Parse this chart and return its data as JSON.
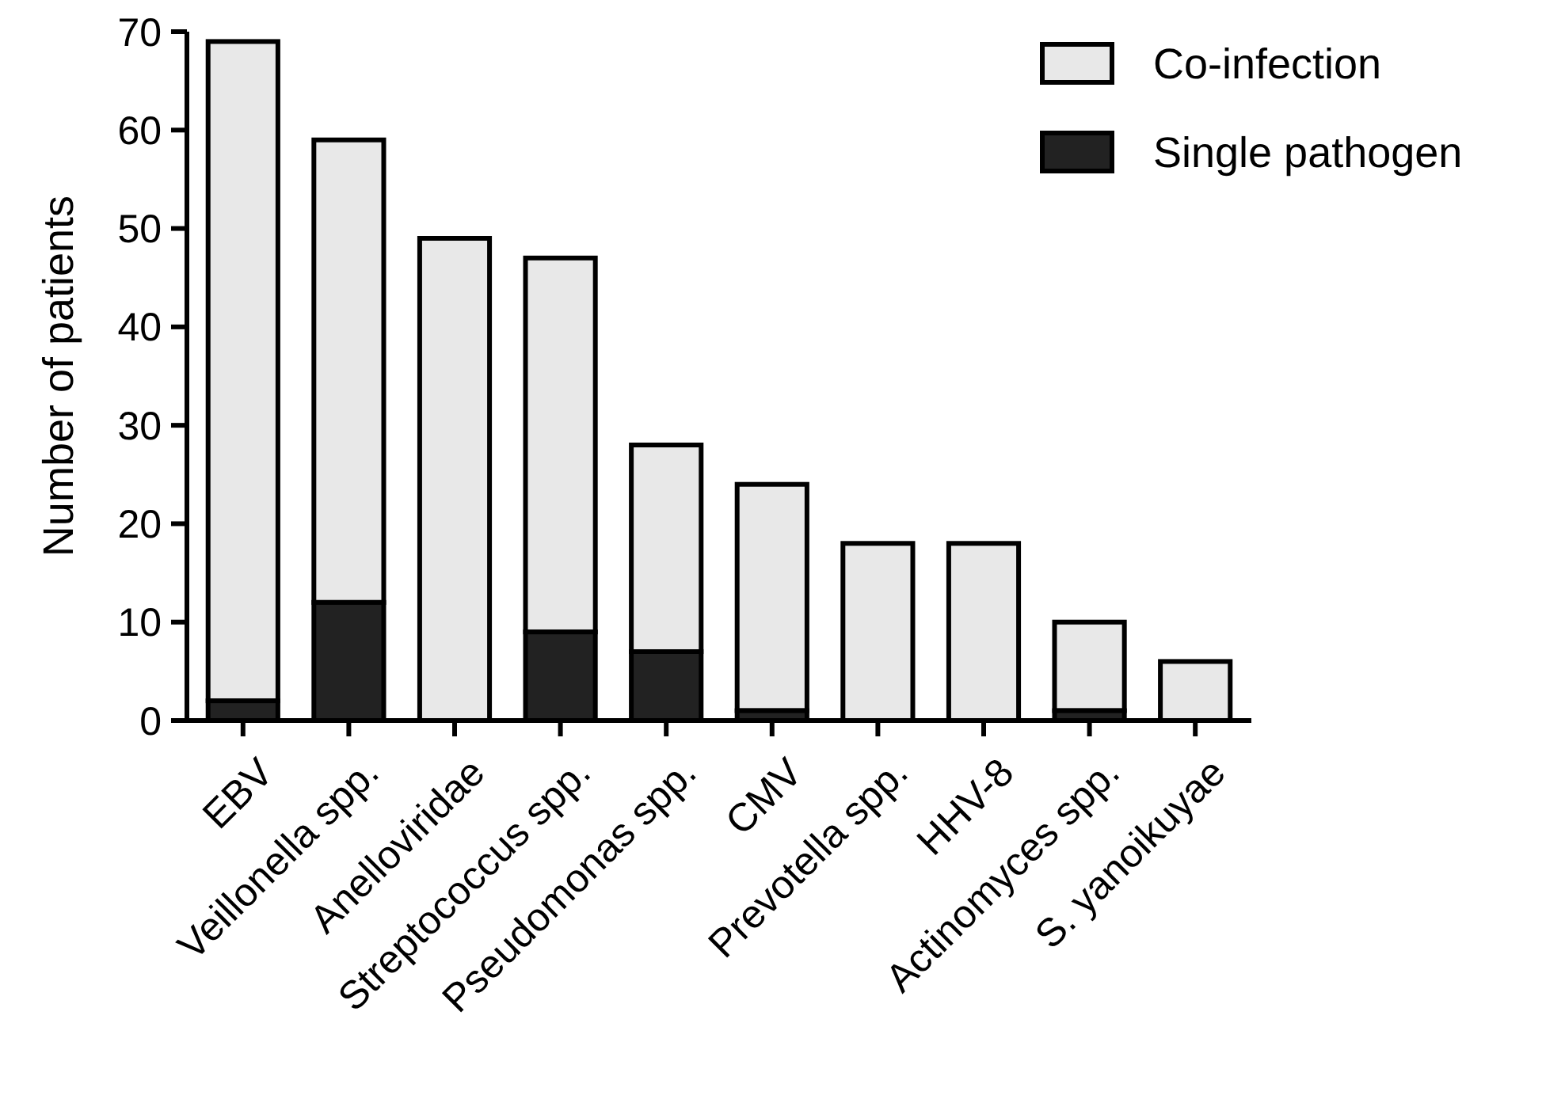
{
  "chart_data": {
    "type": "bar",
    "stacked": true,
    "ylabel": "Number of patients",
    "categories": [
      "EBV",
      "Veillonella spp.",
      "Anelloviridae",
      "Streptococcus spp.",
      "Pseudomonas spp.",
      "CMV",
      "Prevotella spp.",
      "HHV-8",
      "Actinomyces spp.",
      "S. yanoikuyae"
    ],
    "series": [
      {
        "name": "Single pathogen",
        "color": "#222222",
        "values": [
          2,
          12,
          0,
          9,
          7,
          1,
          0,
          0,
          1,
          0
        ]
      },
      {
        "name": "Co-infection",
        "color": "#e8e8e8",
        "values": [
          67,
          47,
          49,
          38,
          21,
          23,
          18,
          18,
          9,
          6
        ]
      }
    ],
    "ylim": [
      0,
      70
    ],
    "yticks": [
      0,
      10,
      20,
      30,
      40,
      50,
      60,
      70
    ],
    "grid": false,
    "legend": "top right"
  }
}
